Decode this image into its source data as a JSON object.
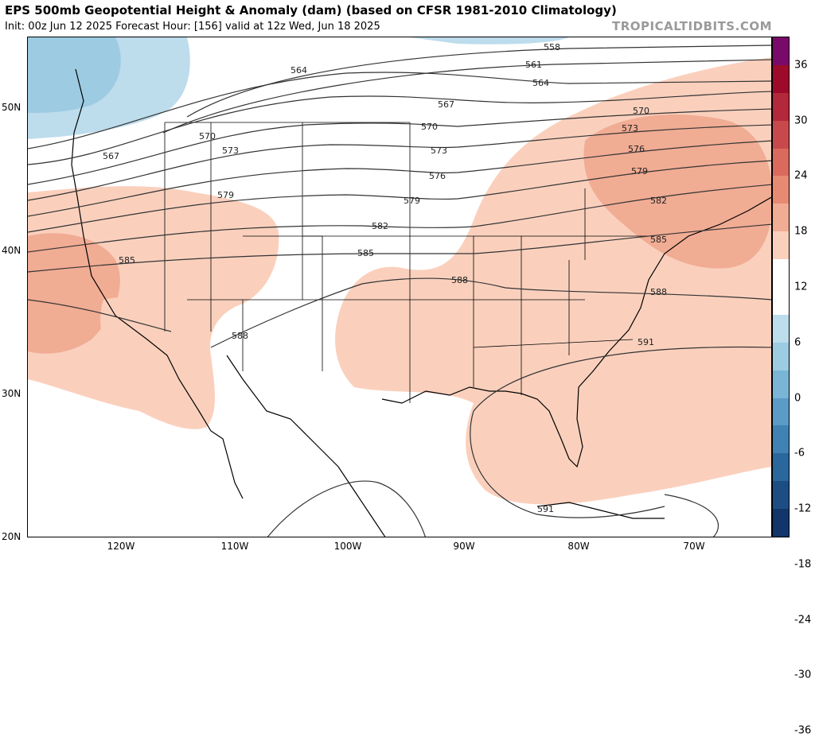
{
  "header": {
    "title": "EPS 500mb Geopotential Height & Anomaly (dam) (based on CFSR 1981-2010 Climatology)",
    "subtitle": "Init: 00z Jun 12 2025   Forecast Hour: [156]   valid at 12z Wed, Jun 18 2025",
    "watermark": "TROPICALTIDBITS.COM"
  },
  "map": {
    "lat_labels": [
      "50N",
      "40N",
      "30N",
      "20N"
    ],
    "lon_labels": [
      "120W",
      "110W",
      "100W",
      "90W",
      "80W",
      "70W"
    ],
    "contour_labels": [
      {
        "text": "558"
      },
      {
        "text": "561"
      },
      {
        "text": "564"
      },
      {
        "text": "564"
      },
      {
        "text": "567"
      },
      {
        "text": "567"
      },
      {
        "text": "570"
      },
      {
        "text": "570"
      },
      {
        "text": "570"
      },
      {
        "text": "573"
      },
      {
        "text": "573"
      },
      {
        "text": "573"
      },
      {
        "text": "576"
      },
      {
        "text": "576"
      },
      {
        "text": "579"
      },
      {
        "text": "579"
      },
      {
        "text": "579"
      },
      {
        "text": "582"
      },
      {
        "text": "582"
      },
      {
        "text": "585"
      },
      {
        "text": "585"
      },
      {
        "text": "585"
      },
      {
        "text": "588"
      },
      {
        "text": "588"
      },
      {
        "text": "588"
      },
      {
        "text": "591"
      },
      {
        "text": "591"
      }
    ]
  },
  "colorbar": {
    "labels": [
      "36",
      "30",
      "24",
      "18",
      "12",
      "6",
      "0",
      "-6",
      "-12",
      "-18",
      "-24",
      "-30",
      "-36"
    ],
    "colors": [
      "#7a0a6a",
      "#9e0a2a",
      "#b3283a",
      "#c8494c",
      "#da6a5e",
      "#e68a74",
      "#f1ac94",
      "#fad0bd",
      "#ffffff",
      "#ffffff",
      "#bddcec",
      "#9ccbe2",
      "#7ab5d6",
      "#5a9cc6",
      "#3f82b3",
      "#2a679d",
      "#1c4e84",
      "#12356a"
    ]
  }
}
